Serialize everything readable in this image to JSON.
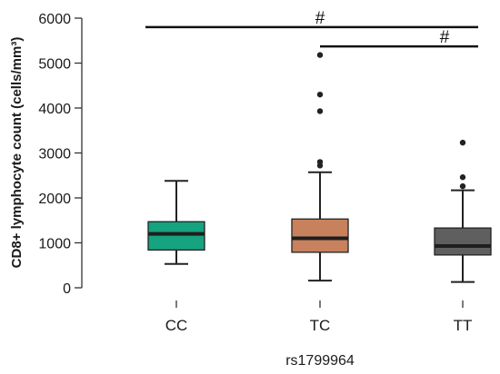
{
  "chart_data": {
    "type": "box",
    "title": "",
    "ylabel": "CD8+ lymphocyte count (cells/mm³)",
    "xlabel": "rs1799964",
    "ylim": [
      0,
      6000
    ],
    "yticks": [
      "0",
      "1000",
      "2000",
      "3000",
      "4000",
      "5000",
      "6000"
    ],
    "grid": false,
    "categories": [
      "CC",
      "TC",
      "TT"
    ],
    "boxes": [
      {
        "category": "CC",
        "whisker_low": 530,
        "q1": 840,
        "median": 1200,
        "q3": 1470,
        "whisker_high": 2380,
        "outliers": [],
        "color": "#16a37f"
      },
      {
        "category": "TC",
        "whisker_low": 160,
        "q1": 790,
        "median": 1100,
        "q3": 1530,
        "whisker_high": 2570,
        "outliers": [
          2720,
          2800,
          3930,
          4300,
          5180
        ],
        "color": "#c7815c"
      },
      {
        "category": "TT",
        "whisker_low": 130,
        "q1": 730,
        "median": 930,
        "q3": 1330,
        "whisker_high": 2170,
        "outliers": [
          2260,
          2460,
          3230
        ],
        "color": "#5f5f5f"
      }
    ],
    "significance": [
      {
        "from": "CC",
        "to": "TT",
        "y": 5800,
        "label": "#"
      },
      {
        "from": "TC",
        "to": "TT",
        "y": 5370,
        "label": "#"
      }
    ]
  }
}
